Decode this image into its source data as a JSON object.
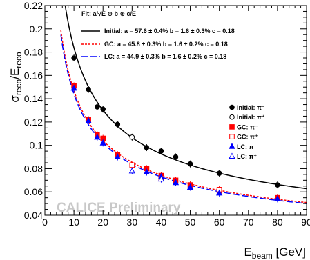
{
  "chart_data": {
    "type": "scatter",
    "title": "",
    "xlabel": {
      "main": "E",
      "sub": "beam",
      "unit": " [GeV]"
    },
    "ylabel": {
      "num": "σ",
      "num_sub": "reco",
      "sep": "/E",
      "den_sub": "reco"
    },
    "xlim": [
      0,
      90
    ],
    "ylim": [
      0.04,
      0.22
    ],
    "x_ticks": [
      0,
      10,
      20,
      30,
      40,
      50,
      60,
      70,
      80,
      90
    ],
    "y_ticks": [
      0.04,
      0.06,
      0.08,
      0.1,
      0.12,
      0.14,
      0.16,
      0.18,
      0.2,
      0.22
    ],
    "grid": false,
    "legend_position": "middle-right",
    "fit_header": "Fit: a/√E ⊕ b ⊕ c/E",
    "fits": [
      {
        "name": "Initial",
        "a": 0.576,
        "b": 0.016,
        "c": 0.18,
        "color": "#000000",
        "dash": "solid",
        "label": "Initial: a = 57.6 ± 0.4%   b = 1.6 ± 0.3%   c = 0.18"
      },
      {
        "name": "GC",
        "a": 0.458,
        "b": 0.016,
        "c": 0.18,
        "color": "#ff0000",
        "dash": "dotted",
        "label": "GC: a = 45.8 ± 0.3%   b = 1.6 ± 0.2%   c = 0.18"
      },
      {
        "name": "LC",
        "a": 0.449,
        "b": 0.016,
        "c": 0.18,
        "color": "#0000ff",
        "dash": "dashed",
        "label": "LC: a = 44.9 ± 0.3%   b = 1.6 ± 0.2%   c = 0.18"
      }
    ],
    "series": [
      {
        "name": "Initial: π⁻",
        "marker": "circle-filled",
        "color": "#000000",
        "x": [
          10,
          15,
          18,
          20,
          25,
          35,
          40,
          45,
          50,
          60,
          80
        ],
        "y": [
          0.175,
          0.148,
          0.133,
          0.131,
          0.118,
          0.098,
          0.095,
          0.09,
          0.084,
          0.076,
          0.066
        ]
      },
      {
        "name": "Initial: π⁺",
        "marker": "circle-open",
        "color": "#000000",
        "x": [
          30
        ],
        "y": [
          0.107
        ]
      },
      {
        "name": "GC: π⁻",
        "marker": "square-filled",
        "color": "#ff0000",
        "x": [
          10,
          15,
          18,
          20,
          25,
          35,
          40,
          45,
          50,
          60,
          80
        ],
        "y": [
          0.151,
          0.122,
          0.109,
          0.106,
          0.092,
          0.08,
          0.074,
          0.07,
          0.066,
          0.061,
          0.055
        ]
      },
      {
        "name": "GC: π⁺",
        "marker": "square-open",
        "color": "#ff0000",
        "x": [
          30,
          40,
          60
        ],
        "y": [
          0.083,
          0.072,
          0.062
        ]
      },
      {
        "name": "LC: π⁻",
        "marker": "triangle-filled",
        "color": "#0000ff",
        "x": [
          10,
          15,
          18,
          20,
          25,
          35,
          40,
          45,
          50,
          60,
          80
        ],
        "y": [
          0.149,
          0.121,
          0.107,
          0.102,
          0.09,
          0.077,
          0.073,
          0.068,
          0.064,
          0.059,
          0.054
        ]
      },
      {
        "name": "LC: π⁺",
        "marker": "triangle-open",
        "color": "#0000ff",
        "x": [
          30,
          40
        ],
        "y": [
          0.078,
          0.071
        ]
      }
    ],
    "watermark": "CALICE Preliminary"
  }
}
